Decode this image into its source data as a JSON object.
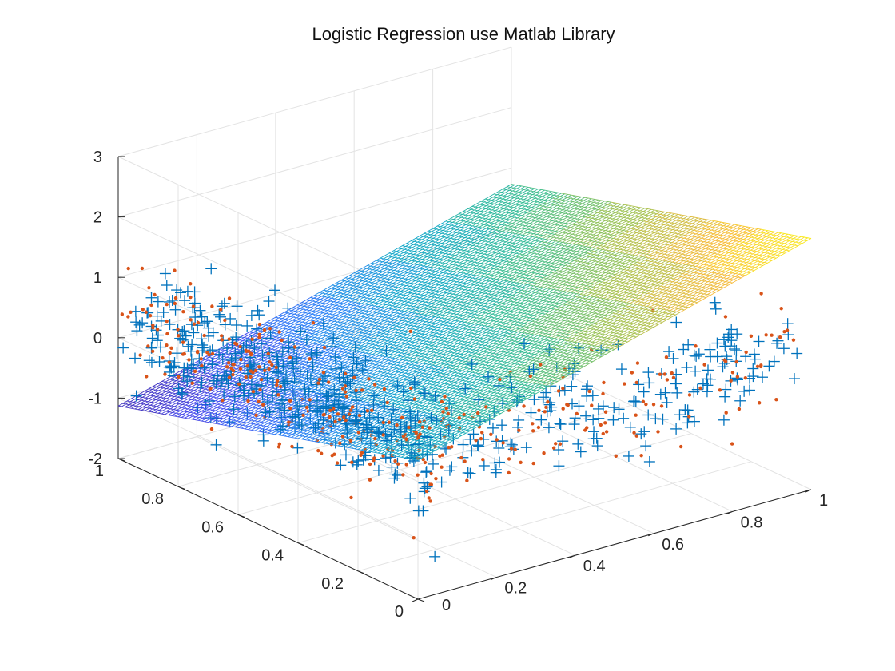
{
  "chart_data": {
    "type": "scatter",
    "title": "Logistic Regression use Matlab Library",
    "xlabel": "",
    "ylabel": "",
    "zlabel": "",
    "xlim": [
      0,
      1
    ],
    "ylim": [
      0,
      1
    ],
    "zlim": [
      -2,
      3
    ],
    "x_ticks": [
      "0",
      "0.2",
      "0.4",
      "0.6",
      "0.8",
      "1"
    ],
    "y_ticks": [
      "0",
      "0.2",
      "0.4",
      "0.6",
      "0.8",
      "1"
    ],
    "z_ticks": [
      "-2",
      "-1",
      "0",
      "1",
      "2",
      "3"
    ],
    "grid": true,
    "view": "3d",
    "surface": {
      "type": "mesh-plane",
      "colormap": "parula",
      "corners": [
        {
          "x": 0,
          "y": 1,
          "z": -1.13
        },
        {
          "x": 0,
          "y": 0,
          "z": 0.3
        },
        {
          "x": 1,
          "y": 0,
          "z": 2.16
        },
        {
          "x": 1,
          "y": 1,
          "z": 0.73
        }
      ]
    },
    "series": [
      {
        "marker": "+",
        "color": "#0072BD",
        "count": 620
      },
      {
        "marker": "•",
        "color": "#D95319",
        "count": 380
      }
    ],
    "note_distribution": "points lie in two bands: one near x=0..0.2 spanning y=0..1 at z around 0, and one near y=0..0.2 spanning x=0..1 at z around 0"
  }
}
